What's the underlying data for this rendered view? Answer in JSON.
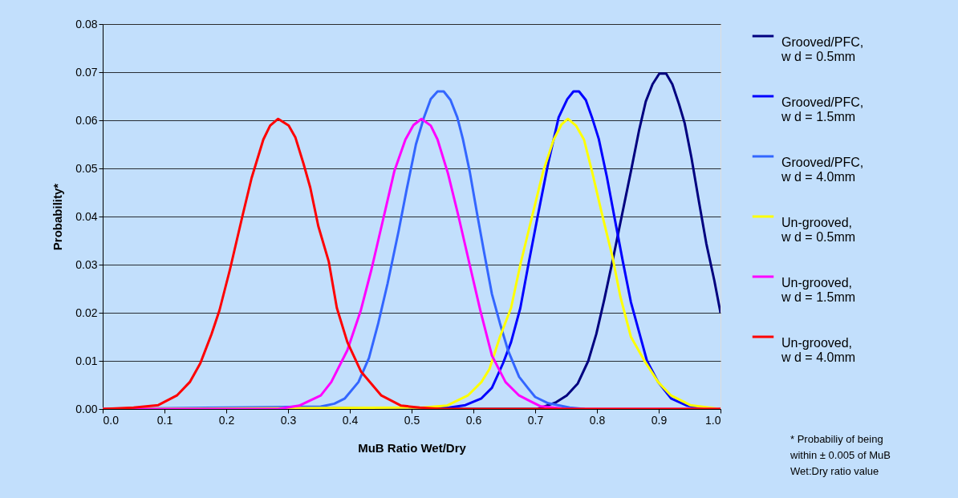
{
  "chart_data": {
    "type": "line",
    "xlabel": "MuB Ratio Wet/Dry",
    "ylabel": "Probability*",
    "xlim": [
      0,
      1
    ],
    "ylim": [
      0,
      0.08
    ],
    "xticks": [
      {
        "value": 0,
        "label": "0.0"
      },
      {
        "value": 0.1,
        "label": "0.1"
      },
      {
        "value": 0.2,
        "label": "0.2"
      },
      {
        "value": 0.3,
        "label": "0.3"
      },
      {
        "value": 0.4,
        "label": "0.4"
      },
      {
        "value": 0.5,
        "label": "0.5"
      },
      {
        "value": 0.6,
        "label": "0.6"
      },
      {
        "value": 0.7,
        "label": "0.7"
      },
      {
        "value": 0.8,
        "label": "0.8"
      },
      {
        "value": 0.9,
        "label": "0.9"
      },
      {
        "value": 1,
        "label": "1.0"
      }
    ],
    "yticks": [
      {
        "value": 0,
        "label": "0.00"
      },
      {
        "value": 0.01,
        "label": "0.01"
      },
      {
        "value": 0.02,
        "label": "0.02"
      },
      {
        "value": 0.03,
        "label": "0.03"
      },
      {
        "value": 0.04,
        "label": "0.04"
      },
      {
        "value": 0.05,
        "label": "0.05"
      },
      {
        "value": 0.06,
        "label": "0.06"
      },
      {
        "value": 0.07,
        "label": "0.07"
      },
      {
        "value": 0.08,
        "label": "0.08"
      }
    ],
    "grid": "y",
    "legend": "right",
    "marker": "none",
    "line_style": "solid",
    "annotations": [
      "* Probabiliy of being within ± 0.005 of MuB Wet:Dry ratio value"
    ],
    "series": [
      {
        "name": "Grooved/PFC, w d = 0.5mm",
        "color": "#000080",
        "x": [
          0,
          0.704,
          0.734,
          0.751,
          0.769,
          0.786,
          0.799,
          0.812,
          0.825,
          0.84,
          0.855,
          0.868,
          0.879,
          0.89,
          0.901,
          0.912,
          0.922,
          0.933,
          0.942,
          0.953,
          0.964,
          0.977,
          0.99,
          1.0
        ],
        "values": [
          0,
          0,
          0.0014,
          0.0028,
          0.0053,
          0.01,
          0.0156,
          0.0228,
          0.0306,
          0.04,
          0.0494,
          0.0578,
          0.0639,
          0.0675,
          0.0697,
          0.0697,
          0.0675,
          0.0633,
          0.0594,
          0.0522,
          0.0439,
          0.0344,
          0.0267,
          0.02
        ]
      },
      {
        "name": "Grooved/PFC, w d = 1.5mm",
        "color": "#0000ff",
        "x": [
          0,
          0.561,
          0.587,
          0.613,
          0.63,
          0.648,
          0.661,
          0.676,
          0.689,
          0.704,
          0.721,
          0.738,
          0.752,
          0.762,
          0.771,
          0.782,
          0.792,
          0.803,
          0.816,
          0.829,
          0.842,
          0.855,
          0.868,
          0.881,
          0.899,
          0.92,
          0.946,
          0.98,
          1.0
        ],
        "values": [
          0,
          0.0003,
          0.0008,
          0.0022,
          0.0044,
          0.0095,
          0.0139,
          0.021,
          0.03,
          0.04,
          0.051,
          0.0606,
          0.0644,
          0.066,
          0.066,
          0.0642,
          0.0606,
          0.0561,
          0.0483,
          0.0394,
          0.0306,
          0.0222,
          0.0161,
          0.01,
          0.0056,
          0.0022,
          0.0007,
          0,
          0
        ]
      },
      {
        "name": "Grooved/PFC, w d = 4.0mm",
        "color": "#3366ff",
        "x": [
          0,
          0.353,
          0.375,
          0.392,
          0.414,
          0.431,
          0.446,
          0.461,
          0.479,
          0.492,
          0.507,
          0.52,
          0.531,
          0.542,
          0.552,
          0.563,
          0.574,
          0.583,
          0.594,
          0.606,
          0.617,
          0.63,
          0.643,
          0.656,
          0.674,
          0.688,
          0.7,
          0.721,
          0.756,
          0.78
        ],
        "values": [
          0,
          0.0005,
          0.0011,
          0.0022,
          0.0056,
          0.0106,
          0.0178,
          0.026,
          0.037,
          0.0456,
          0.055,
          0.0606,
          0.0644,
          0.066,
          0.066,
          0.0642,
          0.0606,
          0.0561,
          0.0494,
          0.0406,
          0.0328,
          0.0239,
          0.0178,
          0.0122,
          0.0067,
          0.0044,
          0.0025,
          0.0012,
          0.0003,
          0
        ]
      },
      {
        "name": "Un-grooved, w d = 0.5mm",
        "color": "#ffff00",
        "x": [
          0,
          0.518,
          0.557,
          0.591,
          0.613,
          0.626,
          0.643,
          0.661,
          0.676,
          0.695,
          0.713,
          0.73,
          0.743,
          0.753,
          0.766,
          0.779,
          0.792,
          0.808,
          0.825,
          0.838,
          0.855,
          0.877,
          0.899,
          0.92,
          0.951,
          0.981,
          1.0
        ],
        "values": [
          0,
          0.0003,
          0.0007,
          0.0028,
          0.0056,
          0.0083,
          0.015,
          0.021,
          0.03,
          0.04,
          0.0494,
          0.056,
          0.0592,
          0.0603,
          0.0589,
          0.056,
          0.0494,
          0.0406,
          0.0317,
          0.0233,
          0.015,
          0.01,
          0.0056,
          0.0028,
          0.0008,
          0.0003,
          0
        ]
      },
      {
        "name": "Un-grooved, w d = 1.5mm",
        "color": "#ff00ff",
        "x": [
          0,
          0.284,
          0.318,
          0.353,
          0.37,
          0.396,
          0.418,
          0.435,
          0.455,
          0.472,
          0.49,
          0.503,
          0.516,
          0.531,
          0.542,
          0.559,
          0.576,
          0.594,
          0.611,
          0.63,
          0.652,
          0.674,
          0.691,
          0.708,
          0.75,
          1.0
        ],
        "values": [
          0,
          0,
          0.0007,
          0.0028,
          0.0056,
          0.0122,
          0.0206,
          0.029,
          0.04,
          0.0494,
          0.056,
          0.059,
          0.0603,
          0.0589,
          0.056,
          0.0489,
          0.04,
          0.03,
          0.0206,
          0.0111,
          0.0056,
          0.0028,
          0.0017,
          0.0006,
          0,
          0
        ]
      },
      {
        "name": "Un-grooved, w d = 4.0mm",
        "color": "#ff0000",
        "x": [
          0,
          0.05,
          0.09,
          0.12,
          0.141,
          0.158,
          0.176,
          0.189,
          0.206,
          0.226,
          0.241,
          0.26,
          0.271,
          0.284,
          0.301,
          0.312,
          0.325,
          0.336,
          0.349,
          0.366,
          0.379,
          0.396,
          0.418,
          0.451,
          0.483,
          0.513,
          0.55,
          1.0
        ],
        "values": [
          0,
          0.0003,
          0.0008,
          0.0028,
          0.0056,
          0.0095,
          0.0155,
          0.0205,
          0.029,
          0.04,
          0.048,
          0.056,
          0.0589,
          0.0603,
          0.0589,
          0.0564,
          0.051,
          0.046,
          0.038,
          0.0306,
          0.021,
          0.0139,
          0.0078,
          0.0028,
          0.0007,
          0.0003,
          0,
          0
        ]
      }
    ]
  }
}
